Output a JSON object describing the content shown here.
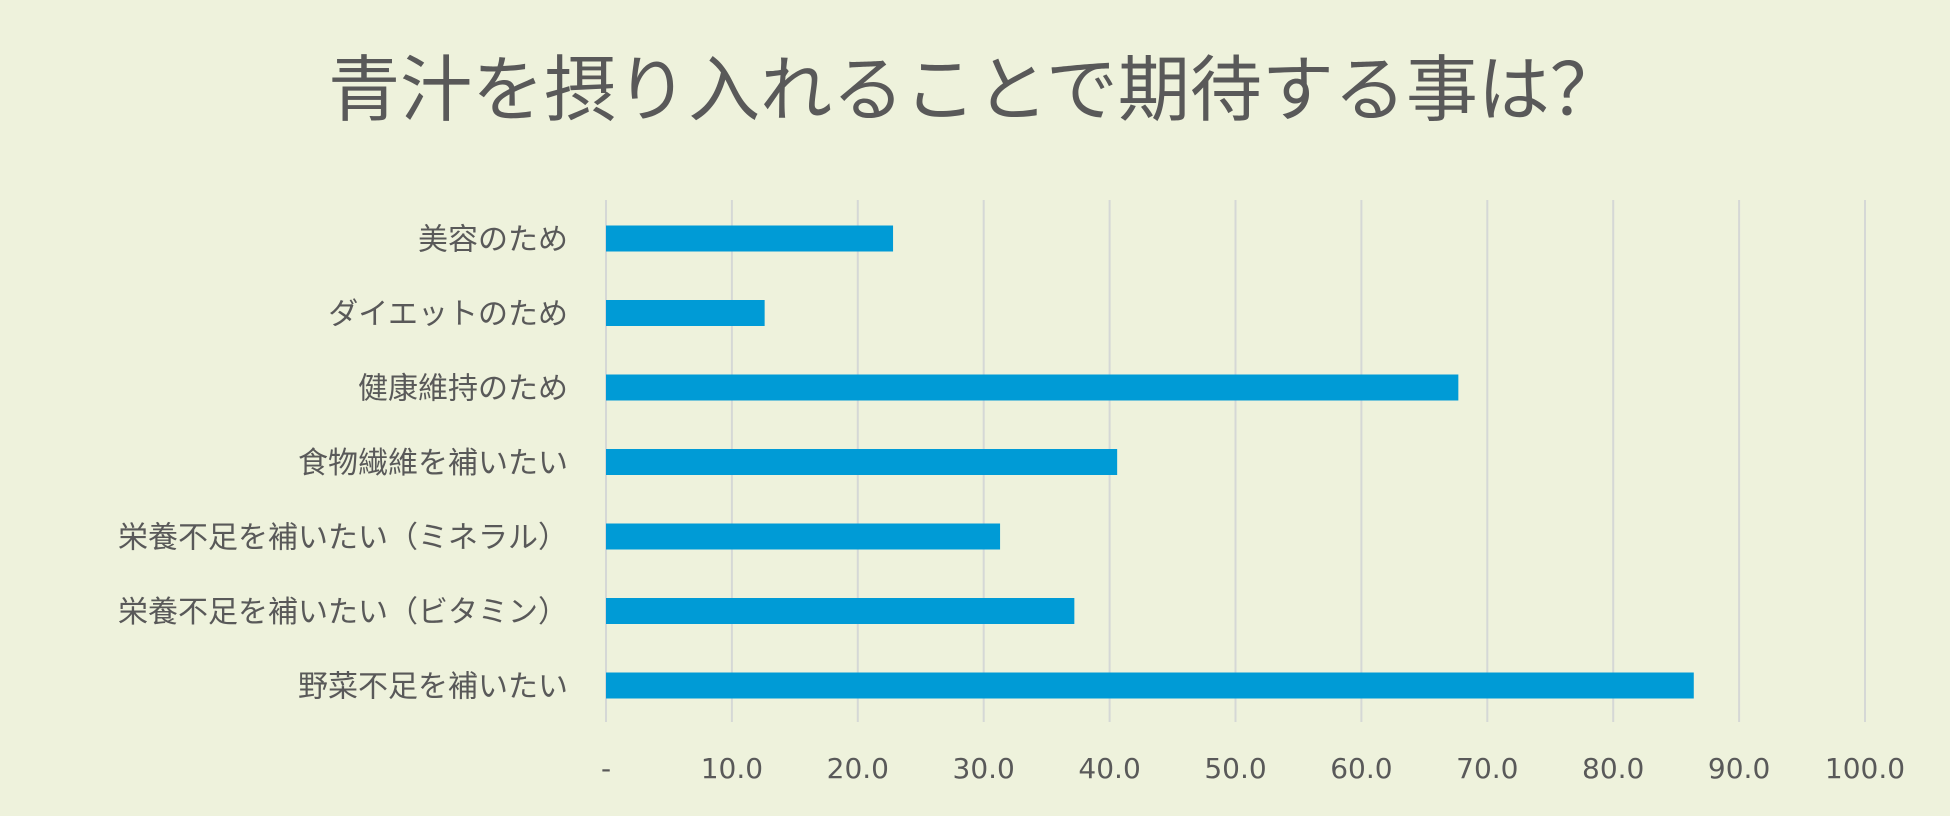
{
  "chart_data": {
    "type": "bar",
    "orientation": "horizontal",
    "title": "青汁を摂り入れることで期待する事は？",
    "categories": [
      "美容のため",
      "ダイエットのため",
      "健康維持のため",
      "食物繊維を補いたい",
      "栄養不足を補いたい（ミネラル）",
      "栄養不足を補いたい（ビタミン）",
      "野菜不足を補いたい"
    ],
    "values": [
      22.8,
      12.6,
      67.7,
      40.6,
      31.3,
      37.2,
      86.4
    ],
    "xlim": [
      0,
      100
    ],
    "xticks": [
      "-",
      "10.0",
      "20.0",
      "30.0",
      "40.0",
      "50.0",
      "60.0",
      "70.0",
      "80.0",
      "90.0",
      "100.0"
    ],
    "xlabel": "",
    "ylabel": "",
    "grid": "vertical",
    "legend": "none",
    "colors": {
      "background": "#eef2dc",
      "bar": "#009bd6",
      "grid": "#d5d8d6",
      "text": "#595959"
    }
  }
}
